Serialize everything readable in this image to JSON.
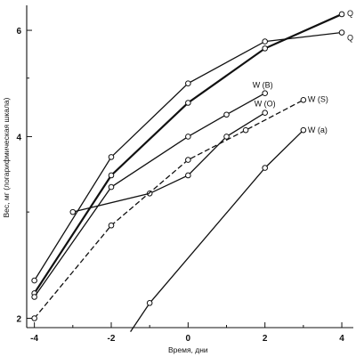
{
  "chart_data": {
    "type": "line",
    "title": "",
    "xlabel": "Время, дни",
    "ylabel": "Вес, мг (логарифмическая шкала)",
    "y_scale": "log",
    "xlim": [
      -4.2,
      4.3
    ],
    "ylim": [
      1.93,
      6.6
    ],
    "x_ticks": [
      -4,
      -2,
      0,
      2,
      4
    ],
    "x_tick_labels": [
      "-4",
      "-2",
      "0",
      "2",
      "4"
    ],
    "y_ticks": [
      2,
      4,
      6
    ],
    "y_tick_labels": [
      "2",
      "4",
      "6"
    ],
    "grid": false,
    "series": [
      {
        "name": "Q",
        "style": "solid-bold",
        "x": [
          -4,
          -2,
          0,
          2,
          4
        ],
        "y": [
          2.2,
          3.45,
          4.55,
          5.6,
          6.38
        ]
      },
      {
        "name": "Q",
        "style": "solid",
        "x": [
          -4,
          -2,
          0,
          2,
          4
        ],
        "y": [
          2.31,
          3.7,
          4.9,
          5.75,
          5.95
        ]
      },
      {
        "name": "W (B)",
        "style": "solid",
        "x": [
          -4,
          -2,
          0,
          1,
          2
        ],
        "y": [
          2.17,
          3.3,
          4.0,
          4.35,
          4.72
        ]
      },
      {
        "name": "W (O)",
        "style": "solid",
        "x": [
          -3,
          -1,
          0,
          1,
          2
        ],
        "y": [
          3.0,
          3.22,
          3.45,
          4.0,
          4.38
        ]
      },
      {
        "name": "W (S)",
        "style": "dashed",
        "x": [
          -4,
          -2,
          0,
          1.5,
          3
        ],
        "y": [
          2.0,
          2.85,
          3.66,
          4.1,
          4.6
        ]
      },
      {
        "name": "W (a)",
        "style": "solid",
        "x": [
          -1,
          2,
          3
        ],
        "y": [
          2.12,
          3.55,
          4.1
        ],
        "line_start": [
          -1.5,
          1.9
        ]
      }
    ]
  }
}
